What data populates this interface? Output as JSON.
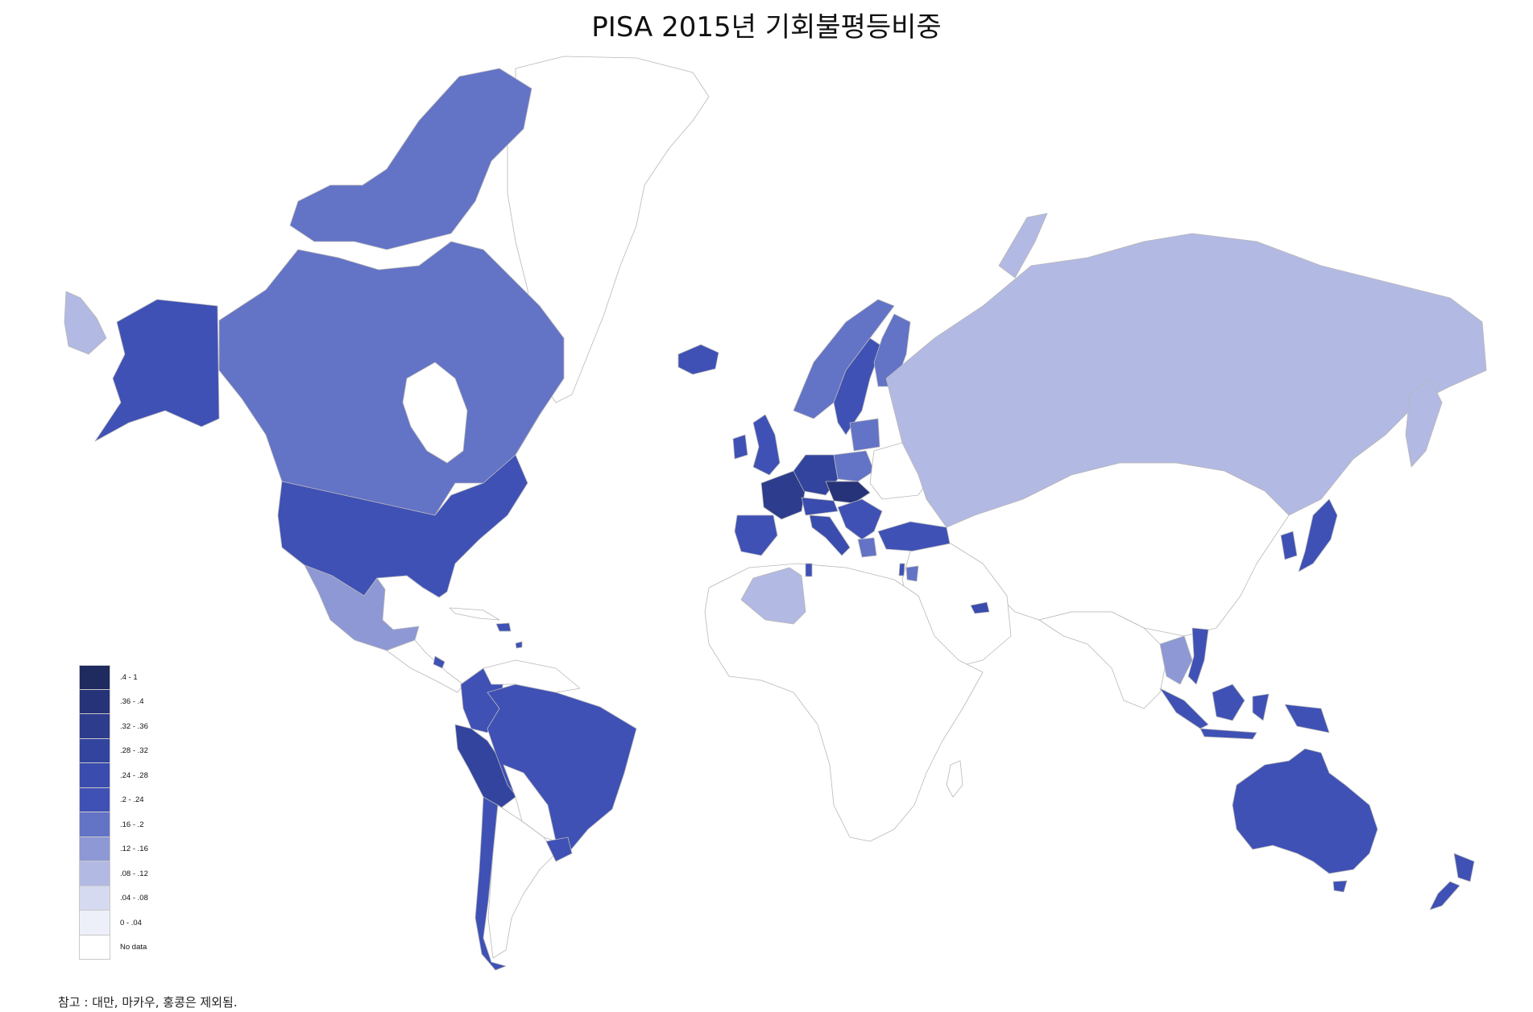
{
  "title": "PISA 2015년 기회불평등비중",
  "note": "참고 : 대만, 마카우, 홍콩은 제외됨.",
  "legend": [
    {
      "label": ".4 - 1",
      "color": "#1f2a5e"
    },
    {
      "label": ".36 - .4",
      "color": "#263378"
    },
    {
      "label": ".32 - .36",
      "color": "#2d3c8c"
    },
    {
      "label": ".28 - .32",
      "color": "#33449e"
    },
    {
      "label": ".24 - .28",
      "color": "#3a4cad"
    },
    {
      "label": ".2 - .24",
      "color": "#3f51b5"
    },
    {
      "label": ".16 - .2",
      "color": "#6373c6"
    },
    {
      "label": ".12 - .16",
      "color": "#8d98d4"
    },
    {
      "label": ".08 - .12",
      "color": "#b2b9e3"
    },
    {
      "label": ".04 - .08",
      "color": "#d6daf0"
    },
    {
      "label": "0 - .04",
      "color": "#eef0f9"
    },
    {
      "label": "No data",
      "color": "#ffffff"
    }
  ]
}
